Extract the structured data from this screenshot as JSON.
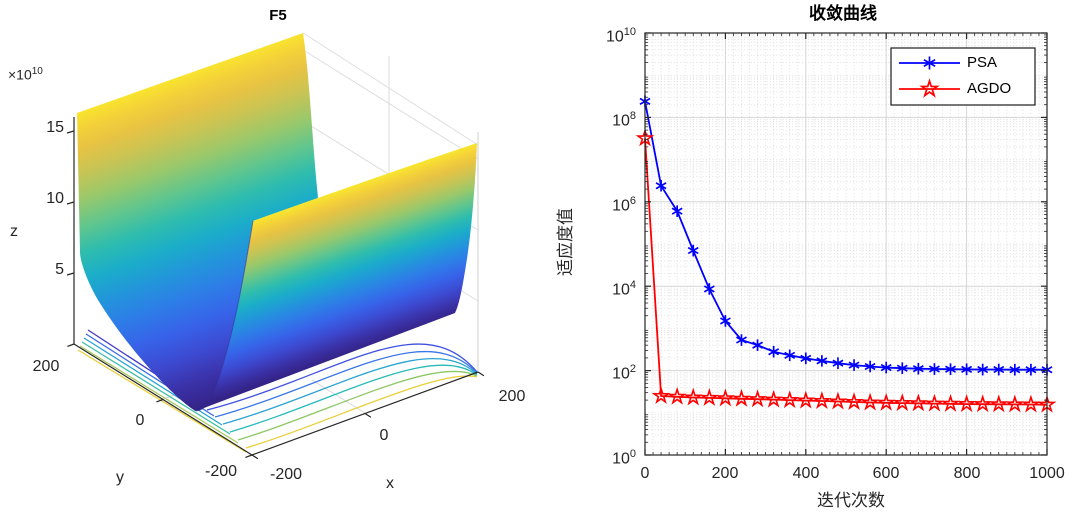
{
  "left_plot": {
    "title": "F5",
    "z_axis": {
      "exp_base": "×10",
      "exp_sup": "10",
      "ticks": [
        "15",
        "10",
        "5"
      ],
      "label": "z"
    },
    "y_axis": {
      "ticks": [
        "200",
        "0",
        "-200"
      ],
      "label": "y"
    },
    "x_axis": {
      "ticks": [
        "-200",
        "0",
        "200"
      ],
      "label": "x"
    }
  },
  "right_plot": {
    "title": "收敛曲线",
    "xlabel": "迭代次数",
    "ylabel": "适应度值",
    "x_ticks": [
      "0",
      "200",
      "400",
      "600",
      "800",
      "1000"
    ],
    "y_tick_base": "10",
    "y_tick_exponents": [
      "0",
      "2",
      "4",
      "6",
      "8",
      "10"
    ],
    "legend": [
      {
        "label": "PSA",
        "color": "#0000FF",
        "marker": "asterisk"
      },
      {
        "label": "AGDO",
        "color": "#FF0000",
        "marker": "pentagram"
      }
    ]
  },
  "chart_data": [
    {
      "type": "surface",
      "title": "F5",
      "xlabel": "x",
      "ylabel": "y",
      "zlabel": "z",
      "x_range": [
        -200,
        200
      ],
      "y_range": [
        -200,
        200
      ],
      "z_tick_values": [
        5,
        10,
        15
      ],
      "z_scale_factor": "1e10",
      "zlim": [
        0,
        160000000000
      ],
      "colormap": "parula",
      "description": "Steep valley-shaped benchmark surface with contour lines projected on the ground plane"
    },
    {
      "type": "line",
      "title": "收敛曲线",
      "xlabel": "迭代次数",
      "ylabel": "适应度值",
      "x_axis_ticks": [
        0,
        200,
        400,
        600,
        800,
        1000
      ],
      "xlim": [
        0,
        1000
      ],
      "yscale": "log",
      "ylim": [
        1,
        10000000000
      ],
      "grid": "major and minor on",
      "legend_position": "northeast",
      "x": [
        0,
        40,
        80,
        120,
        160,
        200,
        240,
        280,
        320,
        360,
        400,
        440,
        480,
        520,
        560,
        600,
        640,
        680,
        720,
        760,
        800,
        840,
        880,
        920,
        960,
        1000
      ],
      "series": [
        {
          "name": "PSA",
          "color": "#0000FF",
          "marker": "asterisk",
          "values": [
            240000000,
            2400000,
            600000,
            70000,
            8600,
            1500,
            530,
            400,
            280,
            230,
            195,
            170,
            150,
            135,
            125,
            118,
            114,
            111,
            109,
            108,
            107,
            106,
            106,
            105,
            105,
            105
          ]
        },
        {
          "name": "AGDO",
          "color": "#FF0000",
          "marker": "pentagram",
          "values": [
            32000000,
            25,
            24,
            23,
            22.5,
            22,
            21.5,
            21,
            20.5,
            20,
            19.5,
            19,
            18.5,
            18,
            17.5,
            17.2,
            17,
            16.8,
            16.5,
            16.3,
            16.1,
            16,
            15.9,
            15.8,
            15.7,
            15.6
          ]
        }
      ]
    }
  ],
  "colors": {
    "axis": "#262626",
    "major_grid": "#d6d6d6",
    "minor_grid": "#e0e0e0",
    "psa": "#0000FF",
    "agdo": "#FF0000"
  }
}
